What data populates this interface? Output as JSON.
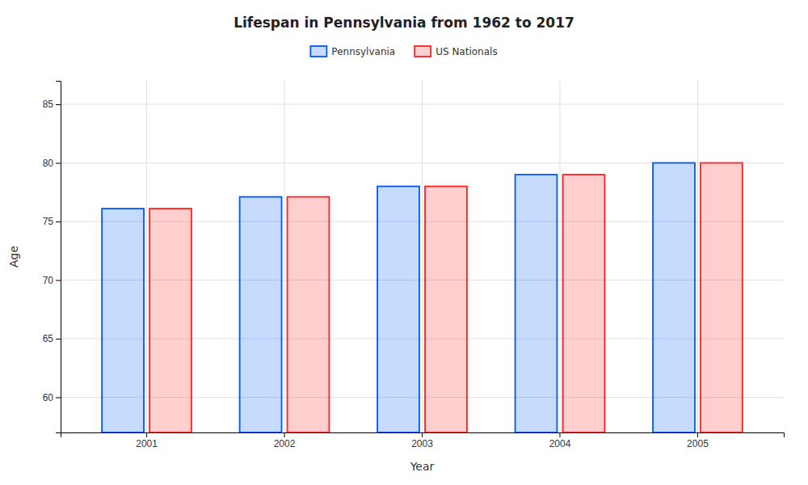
{
  "chart_data": {
    "type": "bar",
    "title": "Lifespan in Pennsylvania from 1962 to 2017",
    "xlabel": "Year",
    "ylabel": "Age",
    "categories": [
      "2001",
      "2002",
      "2003",
      "2004",
      "2005"
    ],
    "series": [
      {
        "name": "Pennsylvania",
        "color": "#0055ff",
        "values": [
          76.1,
          77.1,
          78.0,
          79.0,
          80.0
        ]
      },
      {
        "name": "US Nationals",
        "color": "#ff2020",
        "values": [
          76.1,
          77.1,
          78.0,
          79.0,
          80.0
        ]
      }
    ],
    "ylim": [
      57,
      87
    ],
    "yticks": [
      60,
      65,
      70,
      75,
      80,
      85
    ],
    "grid": true,
    "legend": "top"
  }
}
